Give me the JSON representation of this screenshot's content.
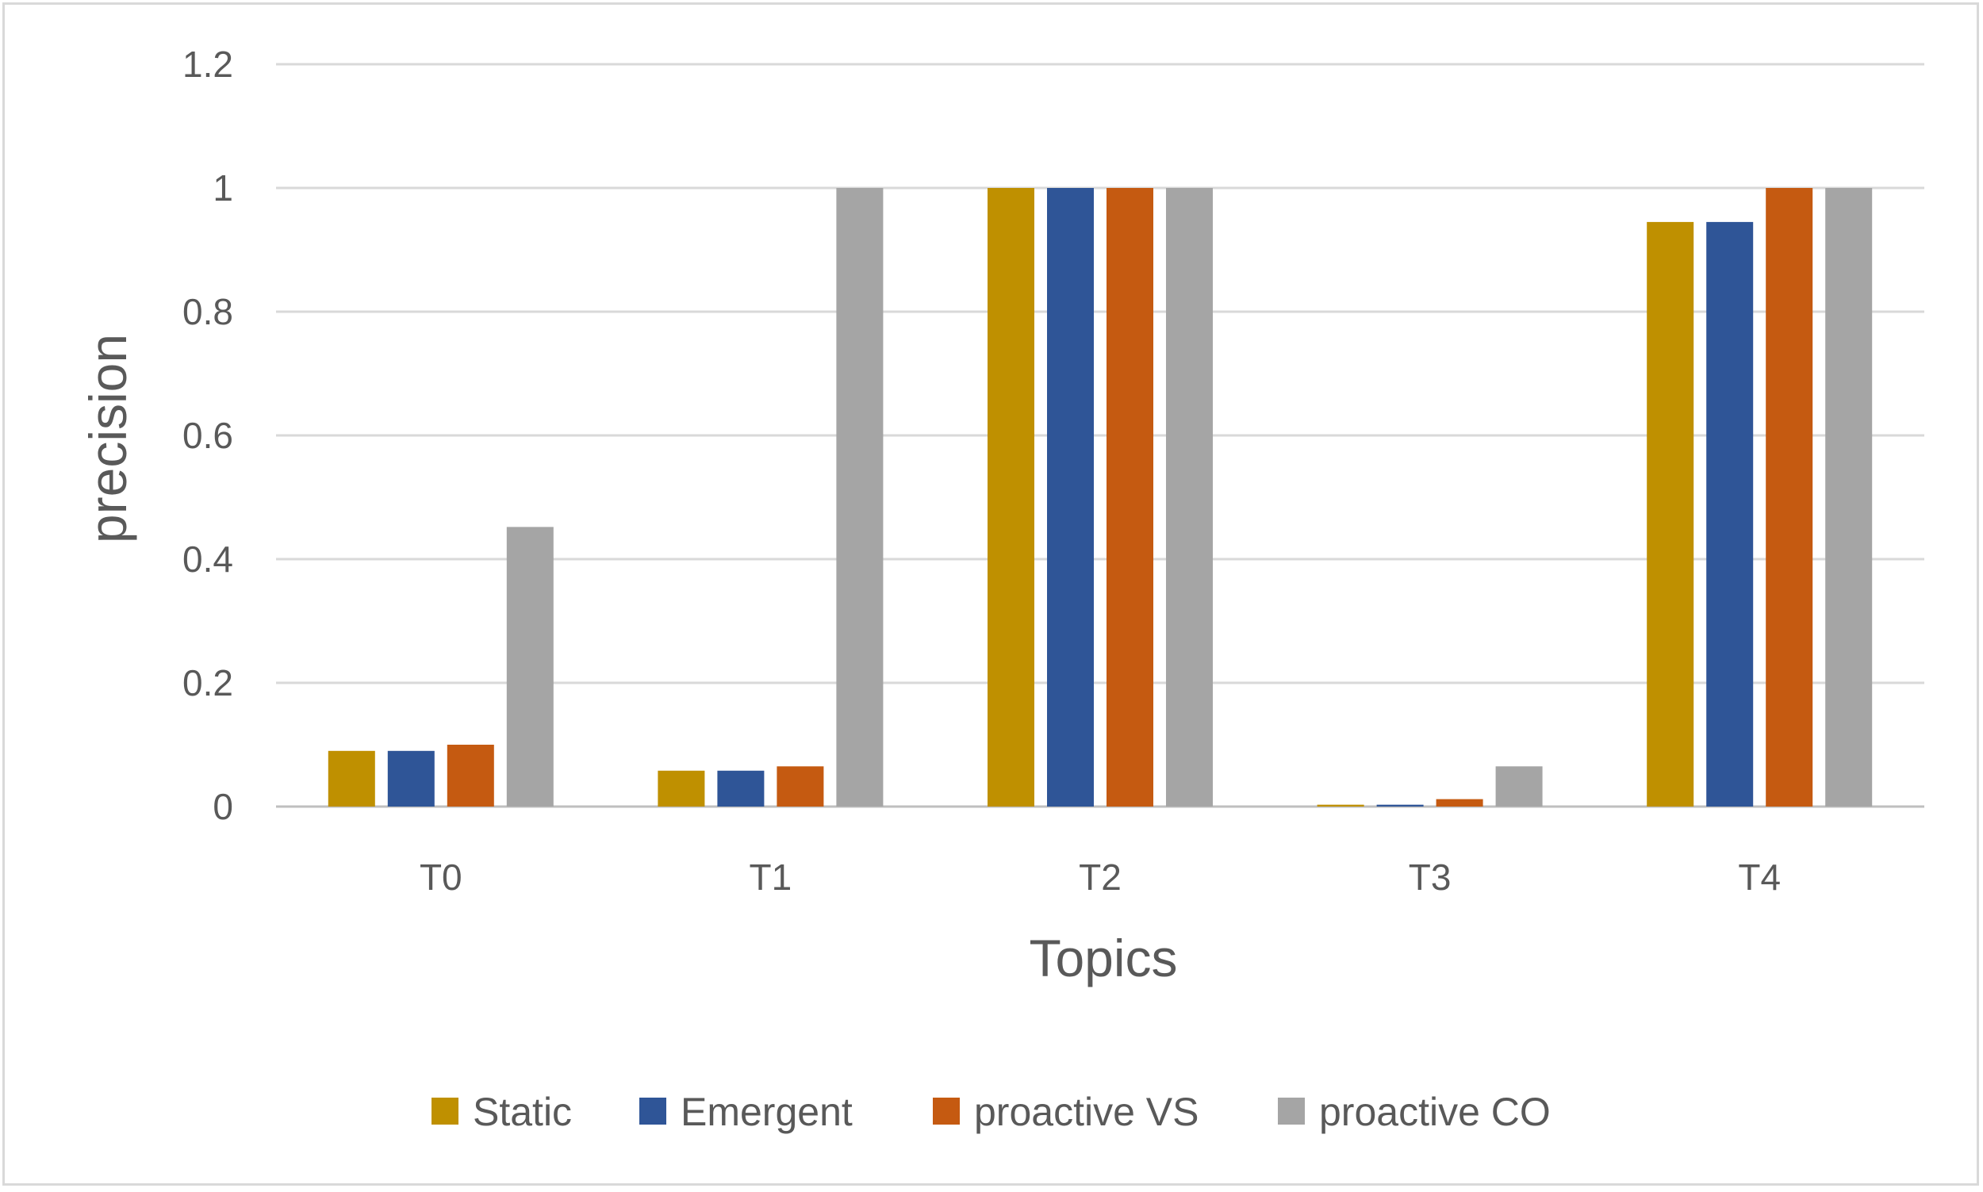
{
  "chart_data": {
    "type": "bar",
    "title": "",
    "xlabel": "Topics",
    "ylabel": "precision",
    "categories": [
      "T0",
      "T1",
      "T2",
      "T3",
      "T4"
    ],
    "ylim": [
      0,
      1.2
    ],
    "yticks": [
      0,
      0.2,
      0.4,
      0.6,
      0.8,
      1,
      1.2
    ],
    "ytick_labels": [
      "0",
      "0.2",
      "0.4",
      "0.6",
      "0.8",
      "1",
      "1.2"
    ],
    "grid": true,
    "legend_position": "bottom",
    "series": [
      {
        "name": "Static",
        "color": "#bf9000",
        "values": [
          0.09,
          0.058,
          1.0,
          0.003,
          0.945
        ]
      },
      {
        "name": "Emergent",
        "color": "#2f5597",
        "values": [
          0.09,
          0.058,
          1.0,
          0.003,
          0.945
        ]
      },
      {
        "name": "proactive VS",
        "color": "#c55a11",
        "values": [
          0.1,
          0.065,
          1.0,
          0.012,
          1.0
        ]
      },
      {
        "name": "proactive CO",
        "color": "#a5a5a5",
        "values": [
          0.452,
          1.0,
          1.0,
          0.065,
          1.0
        ]
      }
    ]
  }
}
